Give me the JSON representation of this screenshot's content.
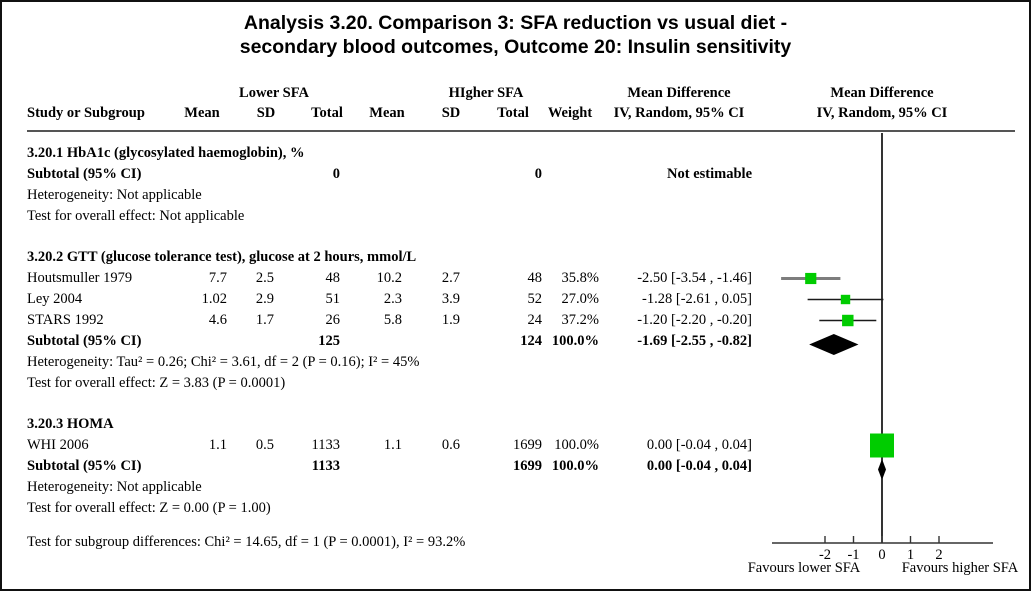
{
  "title": {
    "line1": "Analysis 3.20.   Comparison 3: SFA reduction vs usual diet -",
    "line2": "secondary blood outcomes, Outcome 20: Insulin sensitivity"
  },
  "table": {
    "group_headers": {
      "lower": "Lower SFA",
      "higher": "HIgher SFA",
      "md_stats": "Mean Difference",
      "md_plot": "Mean Difference"
    },
    "col_headers": {
      "study": "Study or Subgroup",
      "mean1": "Mean",
      "sd1": "SD",
      "total1": "Total",
      "mean2": "Mean",
      "sd2": "SD",
      "total2": "Total",
      "weight": "Weight",
      "ci_stats": "IV, Random, 95% CI",
      "ci_plot": "IV, Random, 95% CI"
    },
    "sections": [
      {
        "id": "3.20.1",
        "heading": "3.20.1 HbA1c (glycosylated haemoglobin), %",
        "rows": [],
        "subtotal": {
          "label": "Subtotal (95% CI)",
          "total1": "0",
          "total2": "0",
          "weight": "",
          "ci": "Not estimable"
        },
        "footnotes": [
          "Heterogeneity: Not applicable",
          "Test for overall effect: Not applicable"
        ]
      },
      {
        "id": "3.20.2",
        "heading": "3.20.2 GTT (glucose tolerance test), glucose at 2 hours, mmol/L",
        "rows": [
          {
            "study": "Houtsmuller 1979",
            "mean1": "7.7",
            "sd1": "2.5",
            "total1": "48",
            "mean2": "10.2",
            "sd2": "2.7",
            "total2": "48",
            "weight": "35.8%",
            "ci": "-2.50 [-3.54 , -1.46]"
          },
          {
            "study": "Ley 2004",
            "mean1": "1.02",
            "sd1": "2.9",
            "total1": "51",
            "mean2": "2.3",
            "sd2": "3.9",
            "total2": "52",
            "weight": "27.0%",
            "ci": "-1.28 [-2.61 , 0.05]"
          },
          {
            "study": "STARS 1992",
            "mean1": "4.6",
            "sd1": "1.7",
            "total1": "26",
            "mean2": "5.8",
            "sd2": "1.9",
            "total2": "24",
            "weight": "37.2%",
            "ci": "-1.20 [-2.20 , -0.20]"
          }
        ],
        "subtotal": {
          "label": "Subtotal (95% CI)",
          "total1": "125",
          "total2": "124",
          "weight": "100.0%",
          "ci": "-1.69 [-2.55 , -0.82]"
        },
        "footnotes": [
          "Heterogeneity: Tau² = 0.26; Chi² = 3.61, df = 2 (P = 0.16); I² = 45%",
          "Test for overall effect: Z = 3.83 (P = 0.0001)"
        ]
      },
      {
        "id": "3.20.3",
        "heading": "3.20.3 HOMA",
        "rows": [
          {
            "study": "WHI 2006",
            "mean1": "1.1",
            "sd1": "0.5",
            "total1": "1133",
            "mean2": "1.1",
            "sd2": "0.6",
            "total2": "1699",
            "weight": "100.0%",
            "ci": "0.00 [-0.04 , 0.04]"
          }
        ],
        "subtotal": {
          "label": "Subtotal (95% CI)",
          "total1": "1133",
          "total2": "1699",
          "weight": "100.0%",
          "ci": "0.00 [-0.04 , 0.04]"
        },
        "footnotes": [
          "Heterogeneity: Not applicable",
          "Test for overall effect: Z = 0.00 (P = 1.00)"
        ]
      }
    ]
  },
  "footer": {
    "subgroup_test": "Test for subgroup differences: Chi² = 14.65, df = 1 (P = 0.0001), I² = 93.2%"
  },
  "chart_data": {
    "type": "forest",
    "effect_measure": "Mean Difference, IV, Random, 95% CI",
    "x_ticks": [
      -2,
      -1,
      0,
      1,
      2
    ],
    "x_axis_range": [
      -3.85,
      3.9
    ],
    "favours_left": "Favours lower SFA",
    "favours_right": "Favours higher SFA",
    "marker_color": "#00CC00",
    "studies": [
      {
        "section": "3.20.2",
        "name": "Houtsmuller 1979",
        "est": -2.5,
        "lo": -3.54,
        "hi": -1.46,
        "weight": 35.8,
        "ci_line_color": "#7d7d7d",
        "ci_line_width": 3
      },
      {
        "section": "3.20.2",
        "name": "Ley 2004",
        "est": -1.28,
        "lo": -2.61,
        "hi": 0.05,
        "weight": 27.0,
        "ci_line_color": "#1a1a1a",
        "ci_line_width": 1.4
      },
      {
        "section": "3.20.2",
        "name": "STARS 1992",
        "est": -1.2,
        "lo": -2.2,
        "hi": -0.2,
        "weight": 37.2,
        "ci_line_color": "#1a1a1a",
        "ci_line_width": 1.4
      },
      {
        "section": "3.20.3",
        "name": "WHI 2006",
        "est": 0.0,
        "lo": -0.04,
        "hi": 0.04,
        "weight": 100.0,
        "ci_line_color": "#1a1a1a",
        "ci_line_width": 1.4
      }
    ],
    "diamonds": [
      {
        "section": "3.20.2",
        "est": -1.69,
        "lo": -2.55,
        "hi": -0.82
      },
      {
        "section": "3.20.3",
        "est": 0.0,
        "lo": -0.04,
        "hi": 0.04
      }
    ]
  }
}
